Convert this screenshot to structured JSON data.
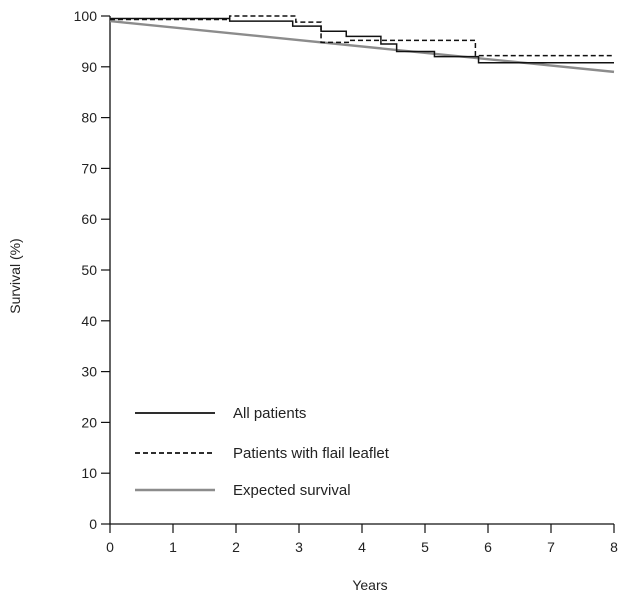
{
  "chart_data": {
    "type": "line",
    "title": "",
    "xlabel": "Years",
    "ylabel": "Survival (%)",
    "xlim": [
      0,
      8
    ],
    "ylim": [
      0,
      100
    ],
    "x_ticks": [
      0,
      1,
      2,
      3,
      4,
      5,
      6,
      7,
      8
    ],
    "y_ticks": [
      0,
      10,
      20,
      30,
      40,
      50,
      60,
      70,
      80,
      90,
      100
    ],
    "grid": false,
    "legend_position": "bottom-left",
    "series": [
      {
        "name": "All patients",
        "style": "solid",
        "color": "#111111",
        "step": true,
        "x": [
          0,
          1.9,
          2.9,
          3.35,
          3.75,
          4.3,
          4.55,
          5.15,
          5.85,
          8
        ],
        "y": [
          99.5,
          99,
          98,
          97,
          96,
          94.5,
          93,
          92,
          90.8,
          90.8
        ]
      },
      {
        "name": "Patients with flail leaflet",
        "style": "dashed",
        "color": "#111111",
        "step": true,
        "x": [
          0,
          1.9,
          2.95,
          3.35,
          3.8,
          5.8,
          8
        ],
        "y": [
          99.3,
          100,
          98.8,
          94.8,
          95.2,
          92.2,
          92.2
        ]
      },
      {
        "name": "Expected survival",
        "style": "solid",
        "color": "#8c8c8c",
        "step": false,
        "x": [
          0,
          8
        ],
        "y": [
          99,
          89
        ]
      }
    ]
  }
}
